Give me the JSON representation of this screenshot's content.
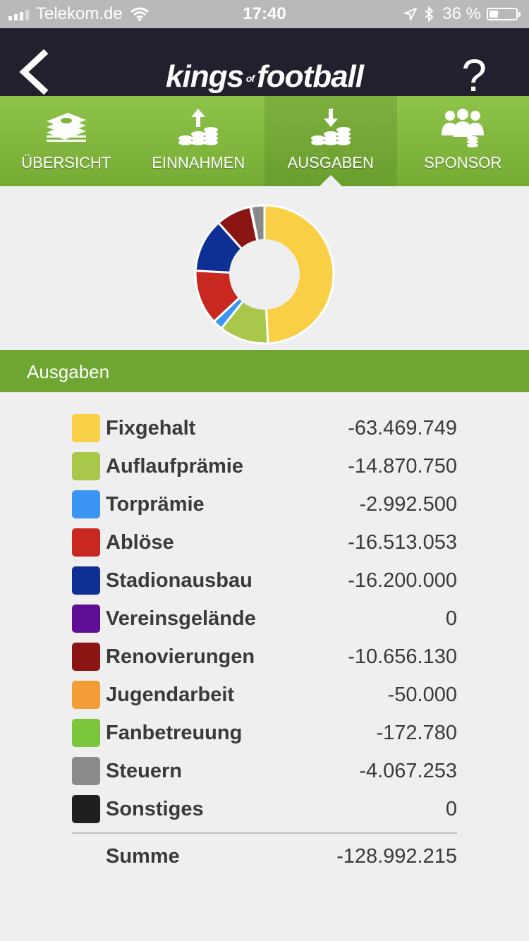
{
  "status": {
    "carrier": "Telekom.de",
    "time": "17:40",
    "battery": "36 %"
  },
  "header": {
    "brand_main1": "kings",
    "brand_of": "of",
    "brand_main2": "football",
    "help": "?"
  },
  "tabs": [
    {
      "label": "ÜBERSICHT",
      "icon": "money-stack-icon",
      "active": false
    },
    {
      "label": "EINNAHMEN",
      "icon": "coins-up-icon",
      "active": false
    },
    {
      "label": "AUSGABEN",
      "icon": "coins-down-icon",
      "active": true
    },
    {
      "label": "SPONSOR",
      "icon": "sponsor-group-icon",
      "active": false
    }
  ],
  "section": {
    "title": "Ausgaben"
  },
  "expenses": [
    {
      "name": "Fixgehalt",
      "value": "-63.469.749",
      "color": "#f8cf45"
    },
    {
      "name": "Auflaufprämie",
      "value": "-14.870.750",
      "color": "#a9c74b"
    },
    {
      "name": "Torprämie",
      "value": "-2.992.500",
      "color": "#3c95f2"
    },
    {
      "name": "Ablöse",
      "value": "-16.513.053",
      "color": "#c8281f"
    },
    {
      "name": "Stadionausbau",
      "value": "-16.200.000",
      "color": "#0e2f93"
    },
    {
      "name": "Vereinsgelände",
      "value": "0",
      "color": "#5e0e95"
    },
    {
      "name": "Renovierungen",
      "value": "-10.656.130",
      "color": "#8b1512"
    },
    {
      "name": "Jugendarbeit",
      "value": "-50.000",
      "color": "#f29d36"
    },
    {
      "name": "Fanbetreuung",
      "value": "-172.780",
      "color": "#7bc63a"
    },
    {
      "name": "Steuern",
      "value": "-4.067.253",
      "color": "#8a8a8a"
    },
    {
      "name": "Sonstiges",
      "value": "0",
      "color": "#1f1f1f"
    }
  ],
  "total": {
    "label": "Summe",
    "value": "-128.992.215"
  },
  "chart_data": {
    "type": "pie",
    "categories": [
      "Fixgehalt",
      "Auflaufprämie",
      "Torprämie",
      "Ablöse",
      "Stadionausbau",
      "Vereinsgelände",
      "Renovierungen",
      "Jugendarbeit",
      "Fanbetreuung",
      "Steuern",
      "Sonstiges"
    ],
    "values": [
      63469749,
      14870750,
      2992500,
      16513053,
      16200000,
      0,
      10656130,
      50000,
      172780,
      4067253,
      0
    ],
    "colors": [
      "#f8cf45",
      "#a9c74b",
      "#3c95f2",
      "#c8281f",
      "#0e2f93",
      "#5e0e95",
      "#8b1512",
      "#f29d36",
      "#7bc63a",
      "#8a8a8a",
      "#1f1f1f"
    ],
    "style": "donut"
  }
}
